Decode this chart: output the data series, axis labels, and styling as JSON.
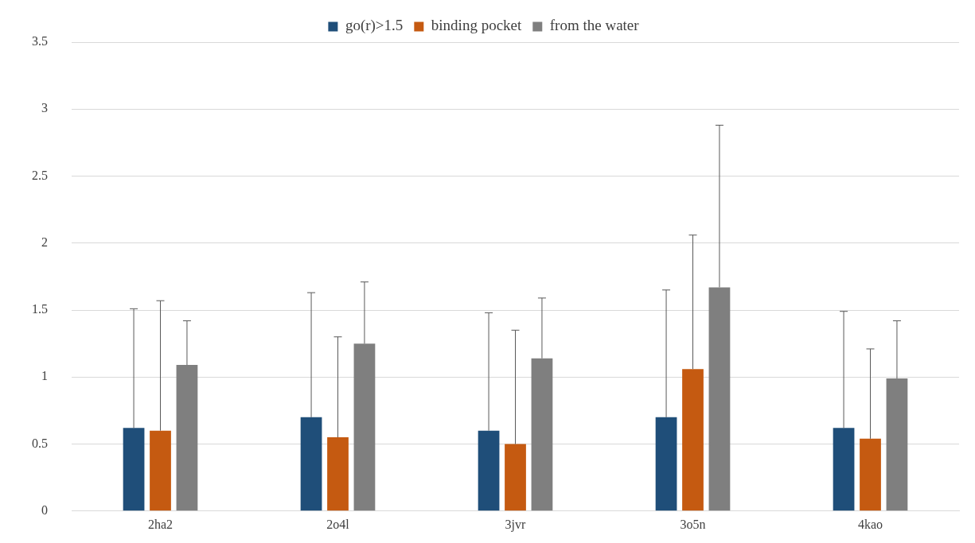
{
  "chart_data": {
    "type": "bar",
    "categories": [
      "2ha2",
      "2o4l",
      "3jvr",
      "3o5n",
      "4kao"
    ],
    "series": [
      {
        "name": "go(r)>1.5",
        "color": "#1f4e79",
        "values": [
          0.62,
          0.7,
          0.6,
          0.7,
          0.62
        ],
        "errors": [
          [
            0.62,
            1.51
          ],
          [
            0.7,
            1.63
          ],
          [
            0.6,
            1.48
          ],
          [
            0.7,
            1.65
          ],
          [
            0.62,
            1.49
          ]
        ]
      },
      {
        "name": "binding pocket",
        "color": "#c55a11",
        "values": [
          0.6,
          0.55,
          0.5,
          1.06,
          0.54
        ],
        "errors": [
          [
            0.6,
            1.57
          ],
          [
            0.55,
            1.3
          ],
          [
            0.5,
            1.35
          ],
          [
            1.06,
            2.06
          ],
          [
            0.54,
            1.21
          ]
        ]
      },
      {
        "name": "from the water",
        "color": "#7f7f7f",
        "values": [
          1.09,
          1.25,
          1.14,
          1.67,
          0.99
        ],
        "errors": [
          [
            1.09,
            1.42
          ],
          [
            1.25,
            1.71
          ],
          [
            1.14,
            1.59
          ],
          [
            1.67,
            2.88
          ],
          [
            0.99,
            1.42
          ]
        ]
      }
    ],
    "ylim": [
      0,
      3.5
    ],
    "yticks": [
      0,
      0.5,
      1,
      1.5,
      2,
      2.5,
      3,
      3.5
    ],
    "grid": "y",
    "legend": "top"
  }
}
